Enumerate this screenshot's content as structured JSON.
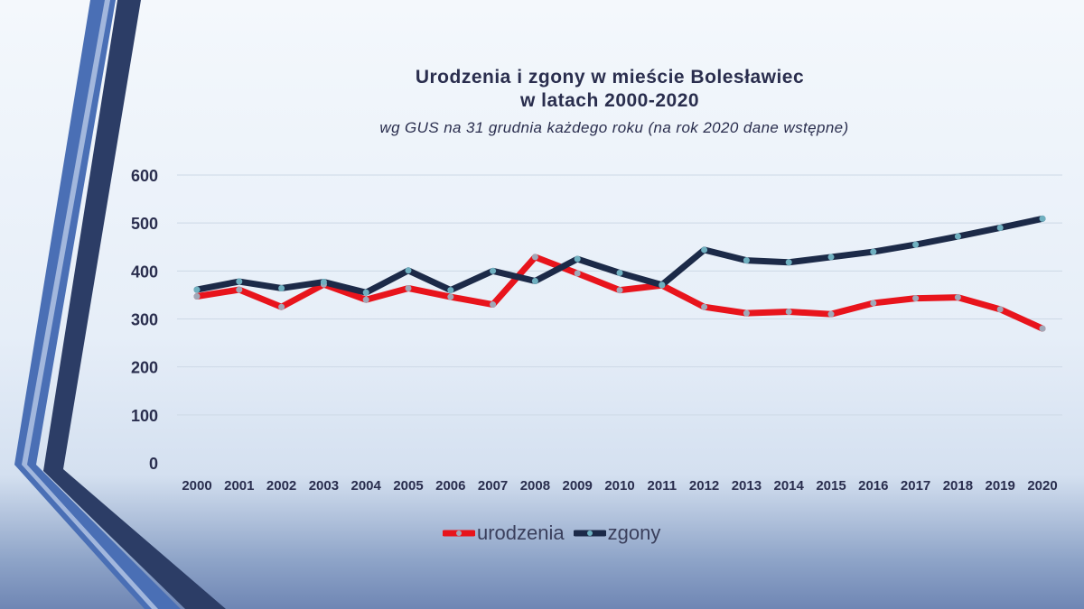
{
  "chart_data": {
    "type": "line",
    "title": "Urodzenia i zgony w mieście Bolesławiec",
    "title_line2": "w latach 2000-2020",
    "subtitle": "wg GUS na 31 grudnia każdego roku (na rok 2020 dane wstępne)",
    "xlabel": "",
    "ylabel": "",
    "ylim": [
      0,
      600
    ],
    "yticks": [
      0,
      100,
      200,
      300,
      400,
      500,
      600
    ],
    "grid": true,
    "legend_position": "bottom",
    "x": [
      "2000",
      "2001",
      "2002",
      "2003",
      "2004",
      "2005",
      "2006",
      "2007",
      "2008",
      "2009",
      "2010",
      "2011",
      "2012",
      "2013",
      "2014",
      "2015",
      "2016",
      "2017",
      "2018",
      "2019",
      "2020"
    ],
    "series": [
      {
        "name": "urodzenia",
        "color": "#e8141c",
        "values": [
          347,
          361,
          325,
          372,
          340,
          364,
          346,
          330,
          429,
          395,
          360,
          370,
          325,
          312,
          315,
          310,
          333,
          343,
          345,
          320,
          280
        ]
      },
      {
        "name": "zgony",
        "color": "#1c2a48",
        "values": [
          361,
          378,
          364,
          377,
          355,
          401,
          360,
          400,
          379,
          425,
          396,
          371,
          444,
          422,
          418,
          429,
          440,
          455,
          472,
          490,
          509
        ]
      }
    ]
  }
}
